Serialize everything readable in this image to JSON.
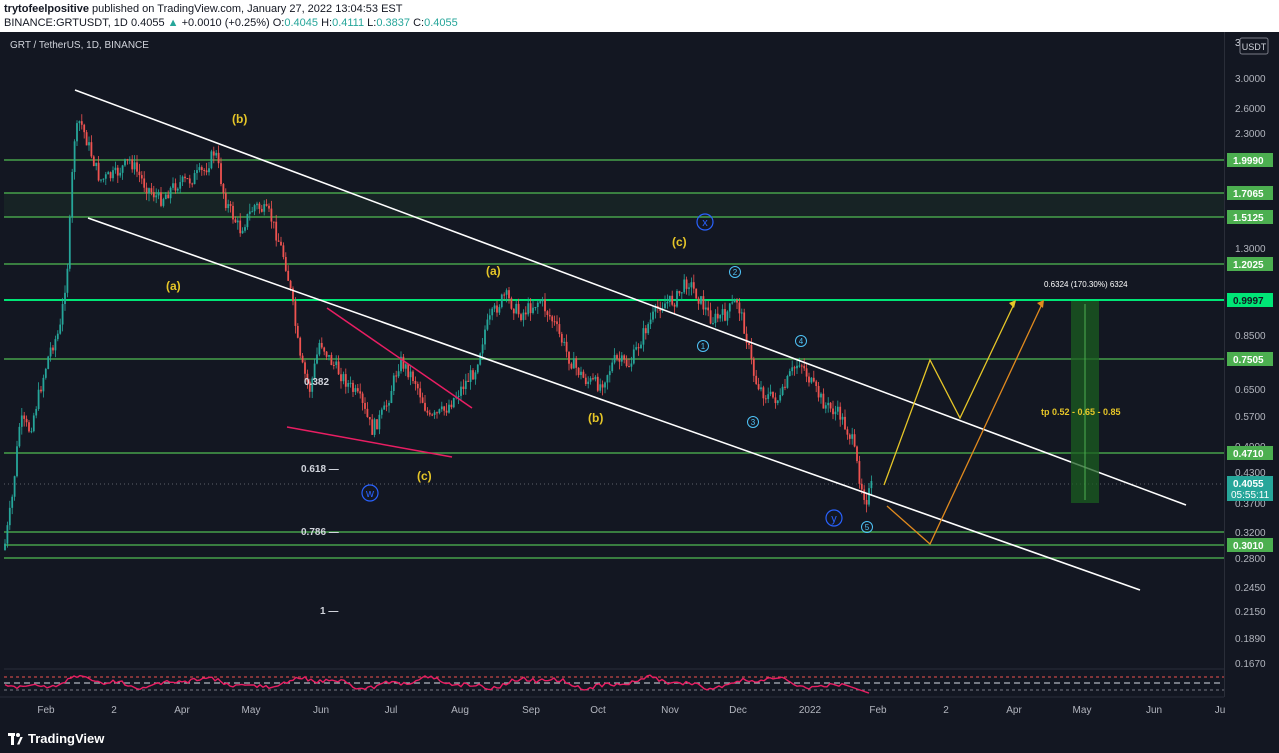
{
  "header": {
    "author": "trytofeelpositive",
    "published_text": "published on TradingView.com, January 27, 2022 13:04:53 EST",
    "ticker": "BINANCE:GRTUSDT, 1D",
    "last": "0.4055",
    "change_arrow": "▲",
    "change": "+0.0010 (+0.25%)",
    "o_label": "O:",
    "o": "0.4045",
    "h_label": "H:",
    "h": "0.4111",
    "l_label": "L:",
    "l": "0.3837",
    "c_label": "C:",
    "c": "0.4055"
  },
  "symbol_title": "GRT / TetherUS, 1D, BINANCE",
  "currency": "USDT",
  "price_scale_top": "3",
  "price_ticks": [
    "3.0000",
    "2.6000",
    "2.3000",
    "1.3000",
    "0.8500",
    "0.6500",
    "0.5700",
    "0.4900",
    "0.4300",
    "0.3700",
    "0.3200",
    "0.2800",
    "0.2450",
    "0.2150",
    "0.1890",
    "0.1670"
  ],
  "level_badges": [
    "1.9990",
    "1.7065",
    "1.5125",
    "1.2025",
    "0.9997",
    "0.7505",
    "0.4710",
    "0.3010"
  ],
  "current_price": {
    "price": "0.4055",
    "countdown": "05:55:11"
  },
  "time_axis": [
    "Feb",
    "2",
    "Apr",
    "May",
    "Jun",
    "Jul",
    "Aug",
    "Sep",
    "Oct",
    "Nov",
    "Dec",
    "2022",
    "Feb",
    "2",
    "Apr",
    "May",
    "Jun",
    "Ju"
  ],
  "wave_labels_yellow": [
    "(b)",
    "(a)",
    "(a)",
    "(c)",
    "(b)",
    "(c)"
  ],
  "wave_labels_blue": [
    "x",
    "w",
    "y",
    "1",
    "2",
    "3",
    "4",
    "5"
  ],
  "fib_labels": [
    "0.382",
    "0.618 —",
    "0.786 —",
    "1 —"
  ],
  "target_label": "0.6324 (170.30%) 6324",
  "tp_label": "tp 0.52 - 0.65 - 0.85",
  "footer": {
    "logo": "TradingView"
  },
  "colors": {
    "bg": "#131722",
    "green_line": "#4caf50",
    "bright_green": "#00e676",
    "yellow": "#e6c628",
    "orange": "#e08a1e",
    "magenta": "#e91e63",
    "up": "#26a69a",
    "down": "#ef5350",
    "blue": "#2962ff"
  }
}
